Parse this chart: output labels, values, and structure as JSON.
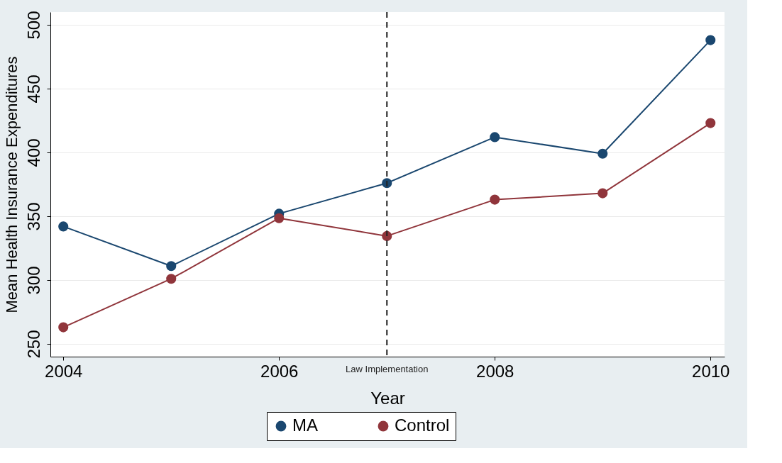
{
  "chart_data": {
    "type": "line",
    "xlabel": "Year",
    "ylabel": "Mean Health Insurance Expenditures",
    "x": [
      2004,
      2005,
      2006,
      2007,
      2008,
      2009,
      2010
    ],
    "series": [
      {
        "name": "MA",
        "color": "#1a476f",
        "values": [
          342,
          311,
          352,
          376,
          412,
          399,
          488
        ]
      },
      {
        "name": "Control",
        "color": "#90353b",
        "values": [
          263,
          301,
          348.5,
          334.5,
          363,
          368,
          423
        ]
      }
    ],
    "xlim": [
      2003.88,
      2010.13
    ],
    "xticks": [
      2004,
      2006,
      2008,
      2010
    ],
    "ylim": [
      240,
      510
    ],
    "yticks": [
      250,
      300,
      350,
      400,
      450,
      500
    ],
    "ref_lines": [
      {
        "axis": "x",
        "value": 2007,
        "label": "Law Implementation",
        "color": "#222222",
        "line_style": "dashed"
      }
    ],
    "grid": "y",
    "legend": "bottom",
    "marker": "circle",
    "line_style": "solid"
  }
}
